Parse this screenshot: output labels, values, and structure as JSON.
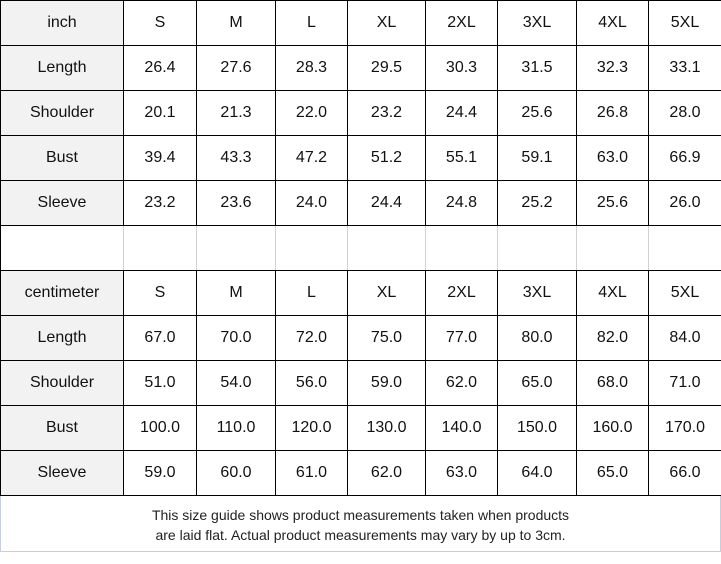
{
  "inch_table": {
    "unit": "inch",
    "sizes": [
      "S",
      "M",
      "L",
      "XL",
      "2XL",
      "3XL",
      "4XL",
      "5XL"
    ],
    "rows": [
      {
        "label": "Length",
        "values": [
          "26.4",
          "27.6",
          "28.3",
          "29.5",
          "30.3",
          "31.5",
          "32.3",
          "33.1"
        ]
      },
      {
        "label": "Shoulder",
        "values": [
          "20.1",
          "21.3",
          "22.0",
          "23.2",
          "24.4",
          "25.6",
          "26.8",
          "28.0"
        ]
      },
      {
        "label": "Bust",
        "values": [
          "39.4",
          "43.3",
          "47.2",
          "51.2",
          "55.1",
          "59.1",
          "63.0",
          "66.9"
        ]
      },
      {
        "label": "Sleeve",
        "values": [
          "23.2",
          "23.6",
          "24.0",
          "24.4",
          "24.8",
          "25.2",
          "25.6",
          "26.0"
        ]
      }
    ]
  },
  "cm_table": {
    "unit": "centimeter",
    "sizes": [
      "S",
      "M",
      "L",
      "XL",
      "2XL",
      "3XL",
      "4XL",
      "5XL"
    ],
    "rows": [
      {
        "label": "Length",
        "values": [
          "67.0",
          "70.0",
          "72.0",
          "75.0",
          "77.0",
          "80.0",
          "82.0",
          "84.0"
        ]
      },
      {
        "label": "Shoulder",
        "values": [
          "51.0",
          "54.0",
          "56.0",
          "59.0",
          "62.0",
          "65.0",
          "68.0",
          "71.0"
        ]
      },
      {
        "label": "Bust",
        "values": [
          "100.0",
          "110.0",
          "120.0",
          "130.0",
          "140.0",
          "150.0",
          "160.0",
          "170.0"
        ]
      },
      {
        "label": "Sleeve",
        "values": [
          "59.0",
          "60.0",
          "61.0",
          "62.0",
          "63.0",
          "64.0",
          "65.0",
          "66.0"
        ]
      }
    ]
  },
  "footer": {
    "line1": "This size guide shows product measurements taken when products",
    "line2": "are laid flat. Actual product measurements may vary by up to 3cm."
  }
}
